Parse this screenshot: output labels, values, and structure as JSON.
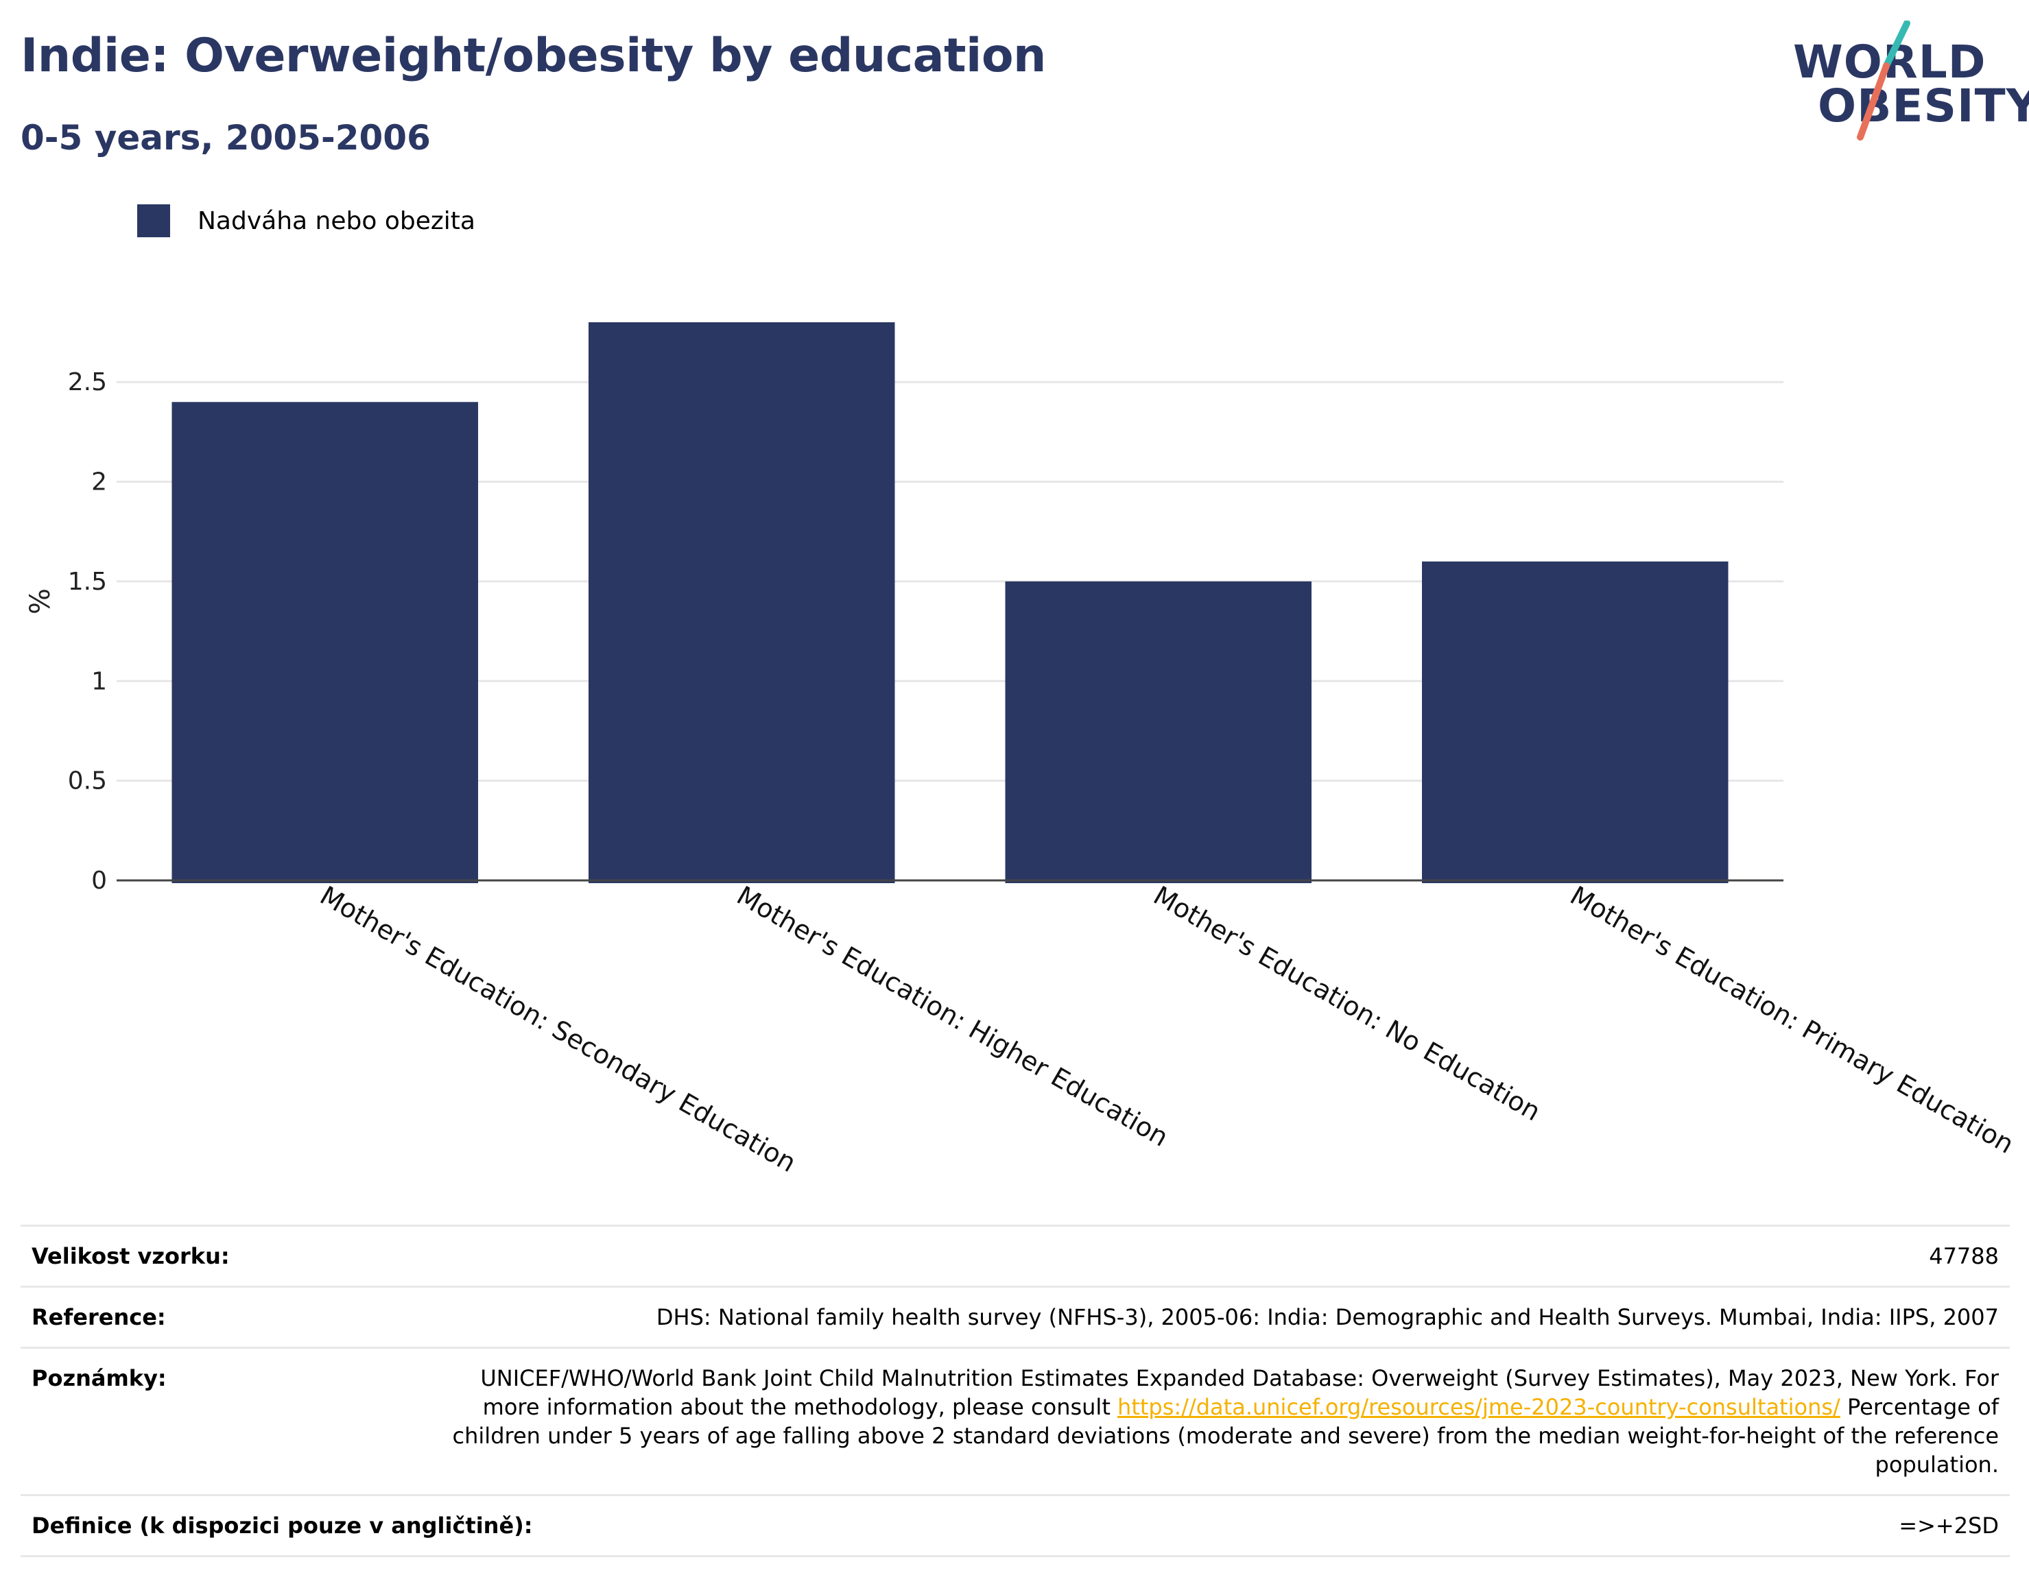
{
  "header": {
    "title": "Indie: Overweight/obesity by education",
    "subtitle": "0-5 years, 2005-2006"
  },
  "logo": {
    "line1": "WORLD",
    "line2": "OBESITY",
    "accent_teal": "#36b9b3",
    "accent_coral": "#e8705a"
  },
  "colors": {
    "bar": "#2b3763",
    "title": "#2b3763",
    "grid": "#e6e6e6"
  },
  "legend": {
    "label": "Nadváha nebo obezita"
  },
  "chart_data": {
    "type": "bar",
    "title": "Indie: Overweight/obesity by education",
    "subtitle": "0-5 years, 2005-2006",
    "xlabel": "",
    "ylabel": "%",
    "ylim": [
      0,
      2.8
    ],
    "yticks": [
      0,
      0.5,
      1,
      1.5,
      2,
      2.5
    ],
    "ytick_labels": [
      "0",
      "0.5",
      "1",
      "1.5",
      "2",
      "2.5"
    ],
    "grid": true,
    "legend_position": "top-left",
    "categories": [
      "Mother's Education: Secondary Education",
      "Mother's Education: Higher Education",
      "Mother's Education: No Education",
      "Mother's Education: Primary Education"
    ],
    "series": [
      {
        "name": "Nadváha nebo obezita",
        "values": [
          2.4,
          2.8,
          1.5,
          1.6
        ]
      }
    ]
  },
  "info": {
    "sample_size": {
      "label": "Velikost vzorku:",
      "value": "47788"
    },
    "reference": {
      "label": "Reference:",
      "value": "DHS: National family health survey (NFHS-3), 2005-06: India: Demographic and Health Surveys. Mumbai, India: IIPS, 2007"
    },
    "notes": {
      "label": "Poznámky:",
      "text_before": "UNICEF/WHO/World Bank Joint Child Malnutrition Estimates Expanded Database: Overweight (Survey Estimates), May 2023, New York. For more information about the methodology, please consult ",
      "link": "https://data.unicef.org/resources/jme-2023-country-consultations/",
      "text_after": " Percentage of children under 5 years of age falling above 2 standard deviations (moderate and severe) from the median weight-for-height of the reference population."
    },
    "definition": {
      "label": "Definice (k dispozici pouze v angličtině):",
      "value": "=>+2SD"
    }
  }
}
